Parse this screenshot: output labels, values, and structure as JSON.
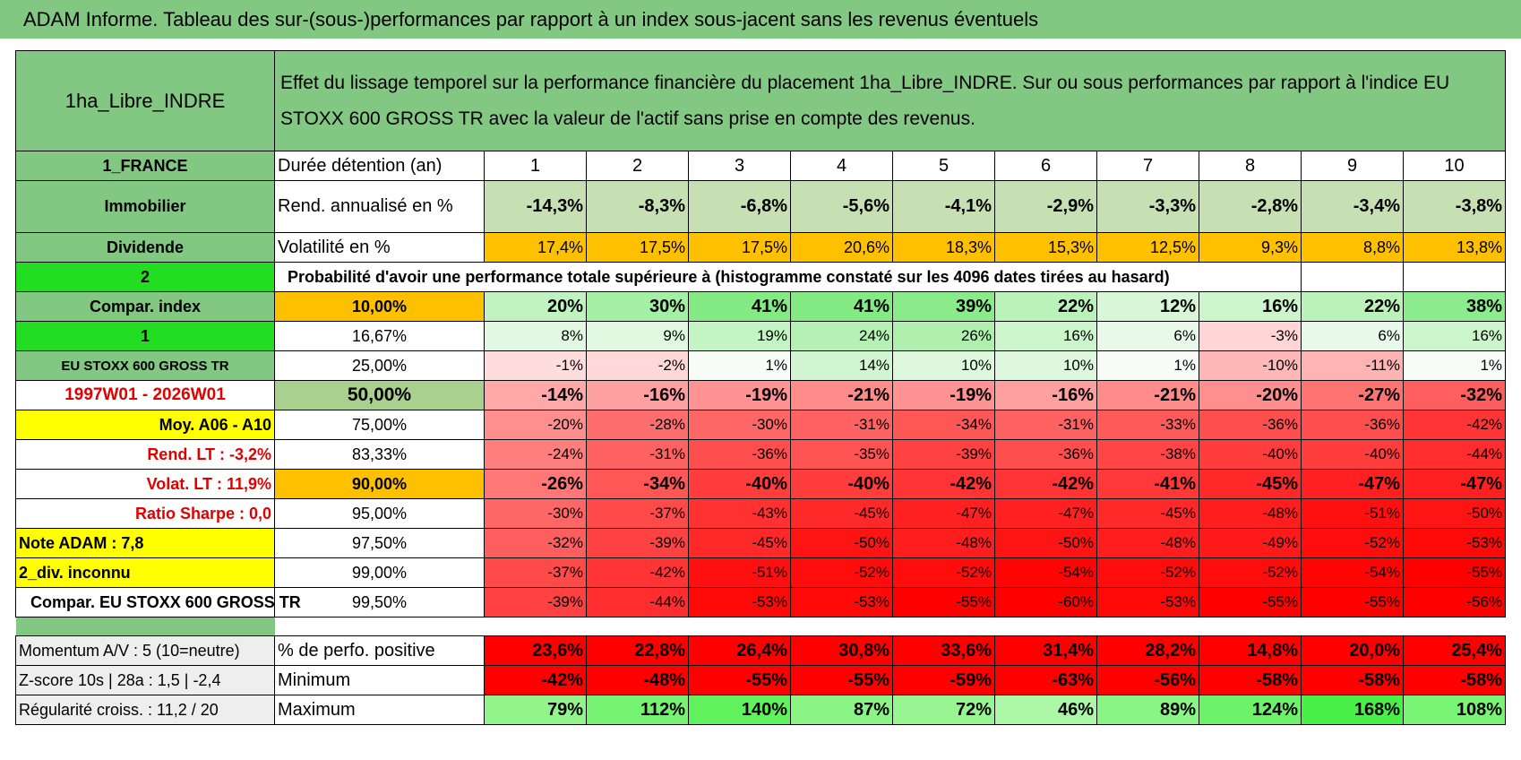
{
  "header": {
    "title": "ADAM Informe. Tableau des sur-(sous-)performances par rapport à un index sous-jacent sans les revenus éventuels"
  },
  "table": {
    "name": "1ha_Libre_INDRE",
    "description": "Effet du lissage temporel sur la performance financière du placement 1ha_Libre_INDRE. Sur ou sous performances par rapport à l'indice EU STOXX 600 GROSS TR avec la valeur de l'actif sans prise en compte des revenus.",
    "rows": [
      [
        "1_FRANCE",
        "Durée détention (an)",
        "1",
        "2",
        "3",
        "4",
        "5",
        "6",
        "7",
        "8",
        "9",
        "10"
      ],
      [
        "Immobilier",
        "Rend. annualisé en %",
        "-14,3%",
        "-8,3%",
        "-6,8%",
        "-5,6%",
        "-4,1%",
        "-2,9%",
        "-3,3%",
        "-2,8%",
        "-3,4%",
        "-3,8%"
      ],
      [
        "Dividende",
        "Volatilité en %",
        "17,4%",
        "17,5%",
        "17,5%",
        "20,6%",
        "18,3%",
        "15,3%",
        "12,5%",
        "9,3%",
        "8,8%",
        "13,8%"
      ],
      [
        "2",
        "Probabilité d'avoir une performance totale supérieure à (histogramme constaté sur les 4096 dates tirées au hasard)"
      ],
      [
        "Compar. index",
        "10,00%",
        "20%",
        "30%",
        "41%",
        "41%",
        "39%",
        "22%",
        "12%",
        "16%",
        "22%",
        "38%"
      ],
      [
        "1",
        "16,67%",
        "8%",
        "9%",
        "19%",
        "24%",
        "26%",
        "16%",
        "6%",
        "-3%",
        "6%",
        "16%"
      ],
      [
        "EU STOXX 600 GROSS TR",
        "25,00%",
        "-1%",
        "-2%",
        "1%",
        "14%",
        "10%",
        "10%",
        "1%",
        "-10%",
        "-11%",
        "1%"
      ],
      [
        "1997W01 - 2026W01",
        "50,00%",
        "-14%",
        "-16%",
        "-19%",
        "-21%",
        "-19%",
        "-16%",
        "-21%",
        "-20%",
        "-27%",
        "-32%"
      ],
      [
        "Moy. A06 - A10",
        "75,00%",
        "-20%",
        "-28%",
        "-30%",
        "-31%",
        "-34%",
        "-31%",
        "-33%",
        "-36%",
        "-36%",
        "-42%"
      ],
      [
        "Rend. LT :    -3,2%",
        "83,33%",
        "-24%",
        "-31%",
        "-36%",
        "-35%",
        "-39%",
        "-36%",
        "-38%",
        "-40%",
        "-40%",
        "-44%"
      ],
      [
        "Volat. LT :    11,9%",
        "90,00%",
        "-26%",
        "-34%",
        "-40%",
        "-40%",
        "-42%",
        "-42%",
        "-41%",
        "-45%",
        "-47%",
        "-47%"
      ],
      [
        "Ratio Sharpe :    0,0",
        "95,00%",
        "-30%",
        "-37%",
        "-43%",
        "-45%",
        "-47%",
        "-47%",
        "-45%",
        "-48%",
        "-51%",
        "-50%"
      ],
      [
        "Note ADAM : 7,8",
        "97,50%",
        "-32%",
        "-39%",
        "-45%",
        "-50%",
        "-48%",
        "-50%",
        "-48%",
        "-49%",
        "-52%",
        "-53%"
      ],
      [
        "2_div. inconnu",
        "99,00%",
        "-37%",
        "-42%",
        "-51%",
        "-52%",
        "-52%",
        "-54%",
        "-52%",
        "-52%",
        "-54%",
        "-55%"
      ],
      [
        "Compar. EU STOXX 600 GROSS TR",
        "99,50%",
        "-39%",
        "-44%",
        "-53%",
        "-53%",
        "-55%",
        "-60%",
        "-53%",
        "-55%",
        "-55%",
        "-56%"
      ],
      [
        "Momentum A/V : 5 (10=neutre)",
        "% de perfo. positive",
        "23,6%",
        "22,8%",
        "26,4%",
        "30,8%",
        "33,6%",
        "31,4%",
        "28,2%",
        "14,8%",
        "20,0%",
        "25,4%"
      ],
      [
        "Z-score 10s | 28a : 1,5 | -2,4",
        "Minimum",
        "-42%",
        "-48%",
        "-55%",
        "-55%",
        "-59%",
        "-63%",
        "-56%",
        "-58%",
        "-58%",
        "-58%"
      ],
      [
        "Régularité croiss. : 11,2 / 20",
        "Maximum",
        "79%",
        "112%",
        "140%",
        "87%",
        "72%",
        "46%",
        "89%",
        "124%",
        "168%",
        "108%"
      ]
    ]
  }
}
